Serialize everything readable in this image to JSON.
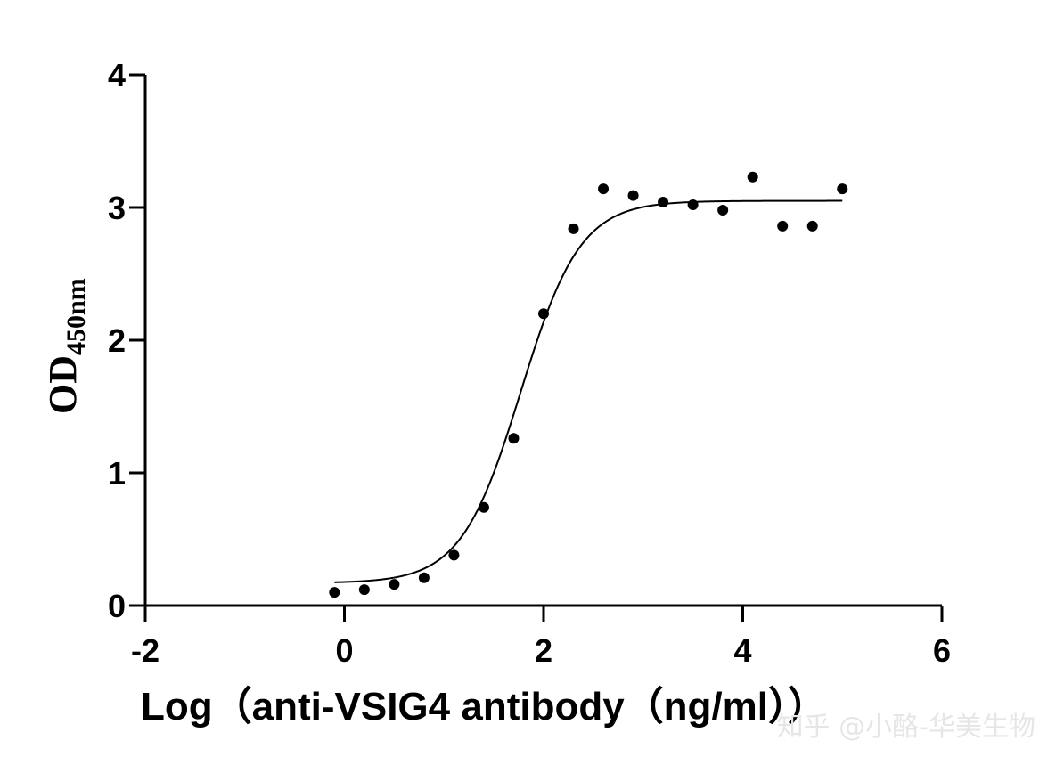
{
  "chart_data": {
    "type": "scatter",
    "title": "",
    "xlabel": "Log（anti-VSIG4 antibody（ng/ml））",
    "ylabel_main": "OD",
    "ylabel_sub": "450nm",
    "xlim": [
      -2,
      6
    ],
    "ylim": [
      0,
      4
    ],
    "x_ticks": [
      "-2",
      "0",
      "2",
      "4",
      "6"
    ],
    "y_ticks": [
      "0",
      "1",
      "2",
      "3",
      "4"
    ],
    "grid": false,
    "series": [
      {
        "x": [
          -0.1,
          0.2,
          0.5,
          0.8,
          1.1,
          1.4,
          1.7,
          2.0,
          2.3,
          2.6,
          2.9,
          3.2,
          3.5,
          3.8,
          4.1,
          4.4,
          4.7,
          5.0
        ],
        "y": [
          0.1,
          0.12,
          0.16,
          0.21,
          0.38,
          0.74,
          1.26,
          2.2,
          2.84,
          3.14,
          3.09,
          3.04,
          3.02,
          2.98,
          3.23,
          2.86,
          2.86,
          3.14
        ]
      }
    ],
    "fit_curve": {
      "model": "4PL",
      "bottom": 0.17,
      "top": 3.05,
      "log_ec50": 1.77,
      "hill_slope": 1.45,
      "x_range": [
        -0.1,
        5.0
      ]
    }
  },
  "watermark": "知乎 @小酪-华美生物"
}
